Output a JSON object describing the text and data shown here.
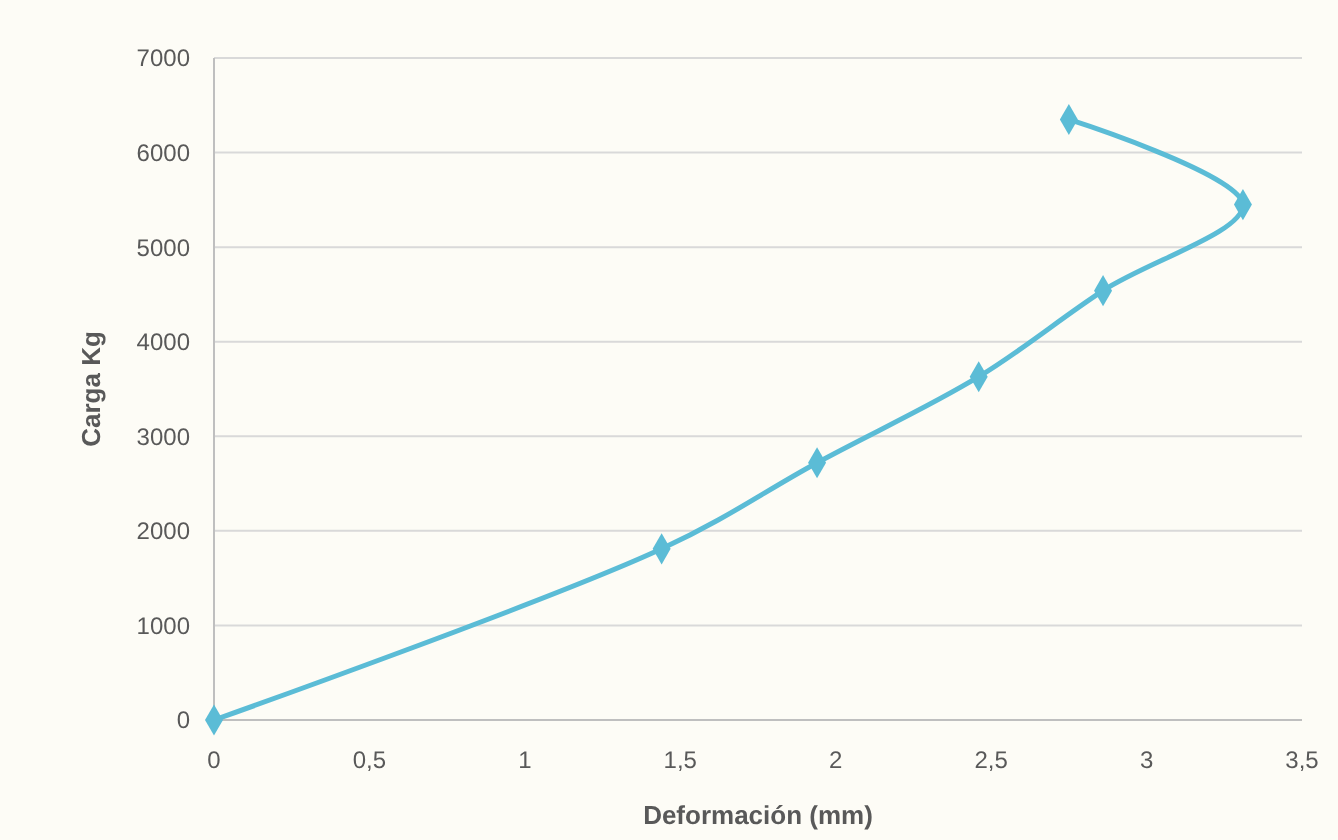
{
  "chart_data": {
    "type": "line",
    "xlabel": "Deformación (mm)",
    "ylabel": "Carga Kg",
    "x": [
      0,
      1.44,
      1.94,
      2.46,
      2.86,
      3.31,
      2.75
    ],
    "series": [
      {
        "color": "#5bbcd6",
        "values": [
          0,
          1810,
          2720,
          3630,
          4540,
          5450,
          6350
        ]
      }
    ],
    "xlim": [
      0,
      3.5
    ],
    "xticks": [
      0,
      {
        "value": 0.5,
        "label": "0,5"
      },
      1,
      {
        "value": 1.5,
        "label": "1,5"
      },
      2,
      {
        "value": 2.5,
        "label": "2,5"
      },
      3,
      {
        "value": 3.5,
        "label": "3,5"
      }
    ],
    "ylim": [
      0,
      7000
    ],
    "yticks": [
      0,
      1000,
      2000,
      3000,
      4000,
      5000,
      6000,
      7000
    ],
    "grid": "y",
    "marker": "diamond",
    "line_style": "solid"
  }
}
